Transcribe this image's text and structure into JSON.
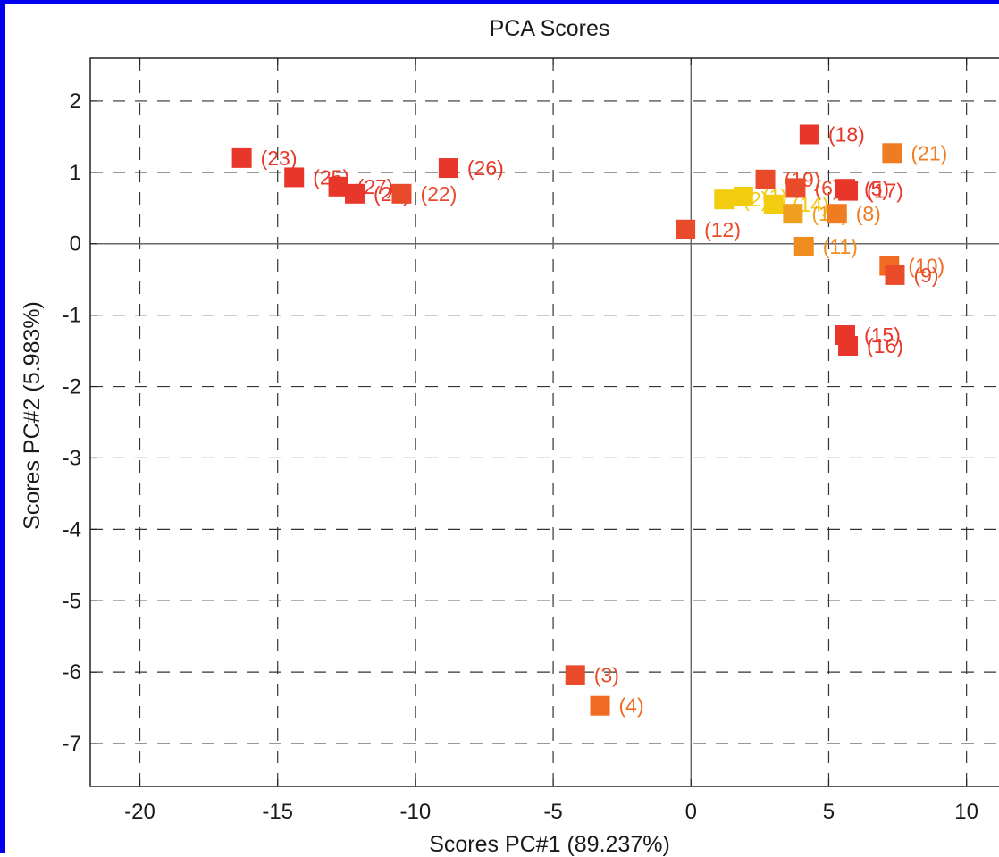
{
  "chart_data": {
    "type": "scatter",
    "title": "PCA Scores",
    "xlabel": "Scores PC#1 (89.237%)",
    "ylabel": "Scores PC#2 (5.983%)",
    "xlim": [
      -21.8,
      11.6
    ],
    "ylim": [
      -7.6,
      2.6
    ],
    "xticks": [
      -20,
      -15,
      -10,
      -5,
      0,
      5,
      10
    ],
    "yticks": [
      2,
      1,
      0,
      -1,
      -2,
      -3,
      -4,
      -5,
      -6,
      -7
    ],
    "grid": true,
    "grid_style": "dashed",
    "zero_lines": true,
    "marker": "square",
    "points": [
      {
        "label": "(23)",
        "x": -16.3,
        "y": 1.2,
        "color": "#e8372a"
      },
      {
        "label": "(25)",
        "x": -14.4,
        "y": 0.93,
        "color": "#e8372a"
      },
      {
        "label": "(27)",
        "x": -12.8,
        "y": 0.8,
        "color": "#e8372a"
      },
      {
        "label": "(24)",
        "x": -12.2,
        "y": 0.7,
        "color": "#e8372a"
      },
      {
        "label": "(22)",
        "x": -10.5,
        "y": 0.7,
        "color": "#e84a2a"
      },
      {
        "label": "(26)",
        "x": -8.8,
        "y": 1.06,
        "color": "#e8372a"
      },
      {
        "label": "(12)",
        "x": -0.2,
        "y": 0.2,
        "color": "#e84a2a"
      },
      {
        "label": "(18)",
        "x": 4.3,
        "y": 1.53,
        "color": "#e8372a"
      },
      {
        "label": "(21)",
        "x": 7.3,
        "y": 1.27,
        "color": "#f07c22"
      },
      {
        "label": "(19)",
        "x": 2.7,
        "y": 0.9,
        "color": "#e84a2a"
      },
      {
        "label": "(2)",
        "x": 1.2,
        "y": 0.62,
        "color": "#f2cc0e"
      },
      {
        "label": "(1)",
        "x": 1.9,
        "y": 0.66,
        "color": "#f2cc0e"
      },
      {
        "label": "(14)",
        "x": 3.0,
        "y": 0.55,
        "color": "#f2cc0e"
      },
      {
        "label": "(13)",
        "x": 3.7,
        "y": 0.42,
        "color": "#f0a020"
      },
      {
        "label": "(6)",
        "x": 3.8,
        "y": 0.78,
        "color": "#e84a2a"
      },
      {
        "label": "(5)",
        "x": 5.6,
        "y": 0.77,
        "color": "#e8372a"
      },
      {
        "label": "(17)",
        "x": 5.7,
        "y": 0.74,
        "color": "#e8372a"
      },
      {
        "label": "(8)",
        "x": 5.3,
        "y": 0.42,
        "color": "#f07c22"
      },
      {
        "label": "(11)",
        "x": 4.1,
        "y": -0.04,
        "color": "#f08c1e"
      },
      {
        "label": "(10)",
        "x": 7.2,
        "y": -0.31,
        "color": "#f06a22"
      },
      {
        "label": "(9)",
        "x": 7.4,
        "y": -0.44,
        "color": "#e84a2a"
      },
      {
        "label": "(15)",
        "x": 5.6,
        "y": -1.28,
        "color": "#e8372a"
      },
      {
        "label": "(16)",
        "x": 5.7,
        "y": -1.43,
        "color": "#e8372a"
      },
      {
        "label": "(3)",
        "x": -4.2,
        "y": -6.04,
        "color": "#e84a2a"
      },
      {
        "label": "(4)",
        "x": -3.3,
        "y": -6.47,
        "color": "#f06a22"
      }
    ]
  }
}
